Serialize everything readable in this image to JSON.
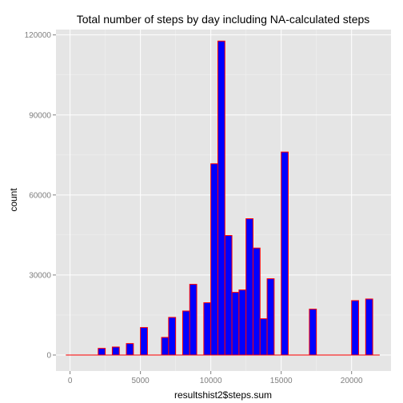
{
  "chart_data": {
    "type": "bar",
    "title": "Total number of steps by day including NA-calculated steps",
    "xlabel": "resultshist2$steps.sum",
    "ylabel": "count",
    "xlim": [
      -1000,
      22800
    ],
    "ylim": [
      -6000,
      122000
    ],
    "x_ticks": [
      0,
      5000,
      10000,
      15000,
      20000
    ],
    "x_tick_labels": [
      "0",
      "5000",
      "10000",
      "15000",
      "20000"
    ],
    "y_ticks": [
      0,
      30000,
      60000,
      90000,
      120000
    ],
    "y_tick_labels": [
      "0",
      "30000",
      "60000",
      "90000",
      "120000"
    ],
    "bin_width": 500,
    "baseline_range": [
      -300,
      22000
    ],
    "bars": [
      {
        "x": 2250,
        "count": 2500
      },
      {
        "x": 3250,
        "count": 3000
      },
      {
        "x": 4250,
        "count": 4300
      },
      {
        "x": 5250,
        "count": 10300
      },
      {
        "x": 6750,
        "count": 6600
      },
      {
        "x": 7250,
        "count": 14100
      },
      {
        "x": 8250,
        "count": 16500
      },
      {
        "x": 8750,
        "count": 26500
      },
      {
        "x": 9750,
        "count": 19600
      },
      {
        "x": 10250,
        "count": 71700
      },
      {
        "x": 10750,
        "count": 117700
      },
      {
        "x": 11250,
        "count": 44800
      },
      {
        "x": 11750,
        "count": 23500
      },
      {
        "x": 12250,
        "count": 24400
      },
      {
        "x": 12750,
        "count": 51100
      },
      {
        "x": 13250,
        "count": 40100
      },
      {
        "x": 13750,
        "count": 13600
      },
      {
        "x": 14250,
        "count": 28600
      },
      {
        "x": 15250,
        "count": 76100
      },
      {
        "x": 17250,
        "count": 17200
      },
      {
        "x": 20250,
        "count": 20400
      },
      {
        "x": 21250,
        "count": 21000
      }
    ],
    "grid": true,
    "legend": "none",
    "fill_color": "#0000ff",
    "outline_color": "#ff0000",
    "panel_color": "#e5e5e5",
    "grid_color": "#ffffff"
  }
}
